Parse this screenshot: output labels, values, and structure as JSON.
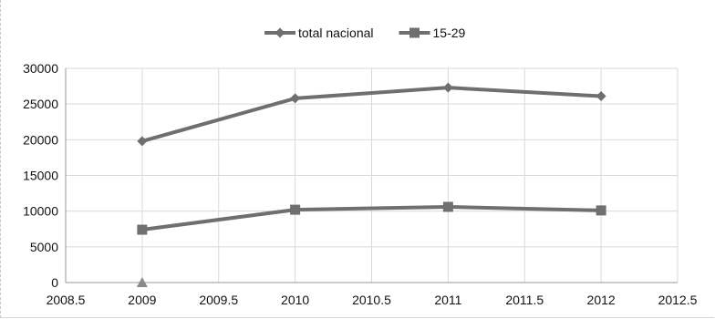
{
  "chart_data": {
    "type": "line",
    "title": "",
    "xlabel": "",
    "ylabel": "",
    "xlim": [
      2008.5,
      2012.5
    ],
    "ylim": [
      0,
      30000
    ],
    "xticks": [
      2008.5,
      2009,
      2009.5,
      2010,
      2010.5,
      2011,
      2011.5,
      2012,
      2012.5
    ],
    "xtick_labels": [
      "2008.5",
      "2009",
      "2009.5",
      "2010",
      "2010.5",
      "2011",
      "2011.5",
      "2012",
      "2012.5"
    ],
    "yticks": [
      0,
      5000,
      10000,
      15000,
      20000,
      25000,
      30000
    ],
    "ytick_labels": [
      "0",
      "5000",
      "10000",
      "15000",
      "20000",
      "25000",
      "30000"
    ],
    "grid": true,
    "legend_position": "top-center",
    "series": [
      {
        "name": "total nacional",
        "marker": "diamond",
        "color": "#6f6f6f",
        "x": [
          2009,
          2010,
          2011,
          2012
        ],
        "y": [
          19800,
          25800,
          27300,
          26100
        ]
      },
      {
        "name": "15-29",
        "marker": "square",
        "color": "#6f6f6f",
        "x": [
          2009,
          2010,
          2011,
          2012
        ],
        "y": [
          7400,
          10200,
          10600,
          10100
        ]
      },
      {
        "name": "",
        "marker": "triangle",
        "color": "#8a8a8a",
        "x": [
          2009
        ],
        "y": [
          0
        ]
      }
    ]
  }
}
